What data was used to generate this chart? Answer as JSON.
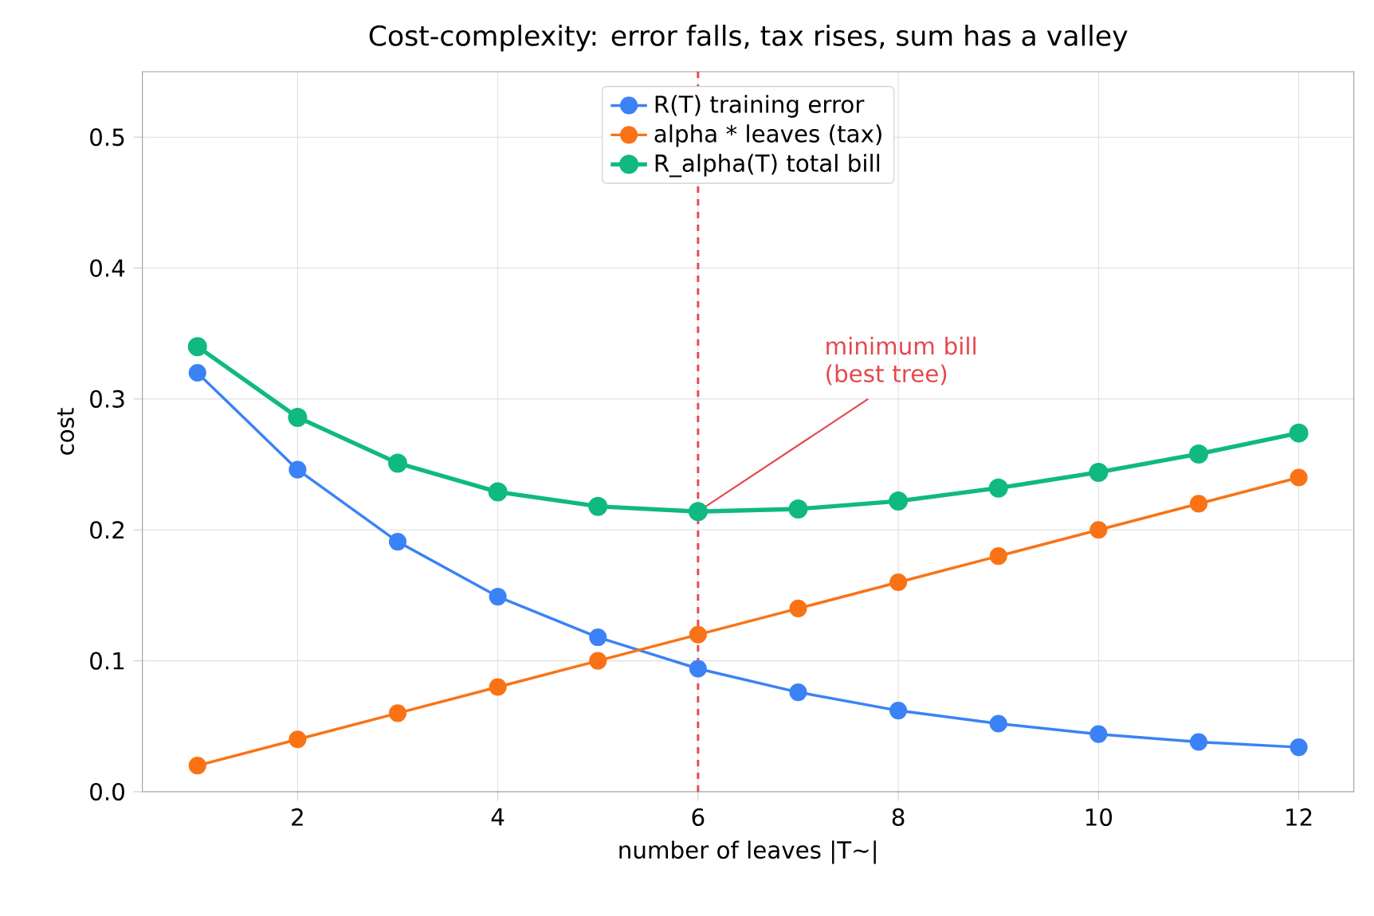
{
  "chart_data": {
    "type": "line",
    "title": "Cost-complexity: error falls, tax rises, sum has a valley",
    "xlabel": "number of leaves  |T~|",
    "ylabel": "cost",
    "x": [
      1,
      2,
      3,
      4,
      5,
      6,
      7,
      8,
      9,
      10,
      11,
      12
    ],
    "series": [
      {
        "name": "R(T)  training error",
        "color": "#3b82f6",
        "values": [
          0.32,
          0.246,
          0.191,
          0.149,
          0.118,
          0.094,
          0.076,
          0.062,
          0.052,
          0.044,
          0.038,
          0.034
        ]
      },
      {
        "name": "alpha * leaves  (tax)",
        "color": "#f97316",
        "values": [
          0.02,
          0.04,
          0.06,
          0.08,
          0.1,
          0.12,
          0.14,
          0.16,
          0.18,
          0.2,
          0.22,
          0.24
        ]
      },
      {
        "name": "R_alpha(T)  total bill",
        "color": "#10b981",
        "values": [
          0.34,
          0.286,
          0.251,
          0.229,
          0.218,
          0.214,
          0.216,
          0.222,
          0.232,
          0.244,
          0.258,
          0.274
        ]
      }
    ],
    "xlim": [
      0.45,
      12.55
    ],
    "ylim": [
      0,
      0.55
    ],
    "xticks": [
      2,
      4,
      6,
      8,
      10,
      12
    ],
    "yticks": [
      {
        "value": 0,
        "label": "0.0"
      },
      0.1,
      0.2,
      0.3,
      0.4,
      0.5
    ],
    "grid": true,
    "legend": "top",
    "marker": "circle",
    "line_style": "solid",
    "ref_lines": [
      {
        "axis": "x",
        "value": 6,
        "color": "#e5484d",
        "line_style": "dashed"
      }
    ],
    "annotations": [
      {
        "text": "minimum bill\n(best tree)",
        "x": 6,
        "y": 0.214
      }
    ]
  }
}
